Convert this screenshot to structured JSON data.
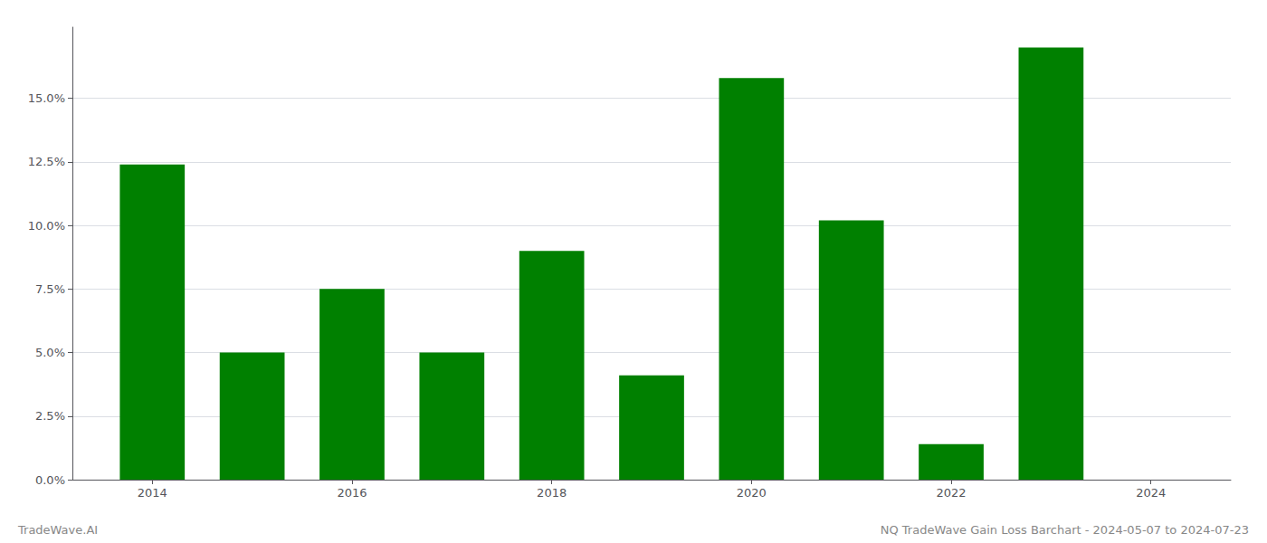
{
  "chart_data": {
    "type": "bar",
    "x": [
      2014,
      2015,
      2016,
      2017,
      2018,
      2019,
      2020,
      2021,
      2022,
      2023
    ],
    "values": [
      0.124,
      0.05,
      0.075,
      0.05,
      0.09,
      0.041,
      0.158,
      0.102,
      0.014,
      0.17
    ],
    "color": "#008000",
    "xlim": [
      2013.2,
      2024.8
    ],
    "xticks": [
      2014,
      2016,
      2018,
      2020,
      2022,
      2024
    ],
    "ylim": [
      0,
      0.178
    ],
    "yticks": [
      {
        "value": 0.0,
        "label": "0.0%"
      },
      {
        "value": 0.025,
        "label": "2.5%"
      },
      {
        "value": 0.05,
        "label": "5.0%"
      },
      {
        "value": 0.075,
        "label": "7.5%"
      },
      {
        "value": 0.1,
        "label": "10.0%"
      },
      {
        "value": 0.125,
        "label": "12.5%"
      },
      {
        "value": 0.15,
        "label": "15.0%"
      }
    ],
    "grid": true,
    "annotations": [
      "TradeWave.AI",
      "NQ TradeWave Gain Loss Barchart - 2024-05-07 to 2024-07-23"
    ]
  }
}
